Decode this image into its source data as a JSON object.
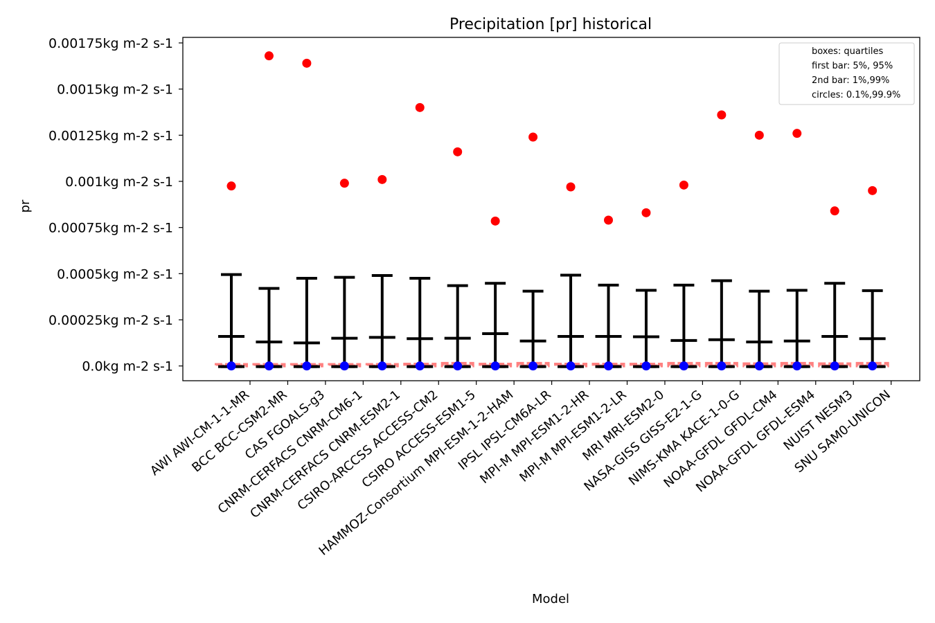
{
  "chart_data": {
    "type": "box",
    "title": "Precipitation [pr] historical",
    "xlabel": "Model",
    "ylabel": "pr",
    "ylim": [
      -8e-05,
      0.00178
    ],
    "yticks": [
      0.0,
      0.00025,
      0.0005,
      0.00075,
      0.001,
      0.00125,
      0.0015,
      0.00175
    ],
    "ytick_labels": [
      "0.0kg m-2 s-1",
      "0.00025kg m-2 s-1",
      "0.0005kg m-2 s-1",
      "0.00075kg m-2 s-1",
      "0.001kg m-2 s-1",
      "0.00125kg m-2 s-1",
      "0.0015kg m-2 s-1",
      "0.00175kg m-2 s-1"
    ],
    "legend": {
      "position": "top-right",
      "entries": [
        "boxes: quartiles",
        "first bar: 5%, 95%",
        "2nd bar: 1%,99%",
        "circles: 0.1%,99.9%"
      ]
    },
    "colors": {
      "whisker": "#000000",
      "box": "#ff8080",
      "high_circle": "#ff0000",
      "low_circle": "#0000ff"
    },
    "categories": [
      "AWI AWI-CM-1-1-MR",
      "BCC BCC-CSM2-MR",
      "CAS FGOALS-g3",
      "CNRM-CERFACS CNRM-CM6-1",
      "CNRM-CERFACS CNRM-ESM2-1",
      "CSIRO-ARCCSS ACCESS-CM2",
      "CSIRO ACCESS-ESM1-5",
      "HAMMOZ-Consortium MPI-ESM-1-2-HAM",
      "IPSL IPSL-CM6A-LR",
      "MPI-M MPI-ESM1-2-HR",
      "MPI-M MPI-ESM1-2-LR",
      "MRI MRI-ESM2-0",
      "NASA-GISS GISS-E2-1-G",
      "NIMS-KMA KACE-1-0-G",
      "NOAA-GFDL GFDL-CM4",
      "NOAA-GFDL GFDL-ESM4",
      "NUIST NESM3",
      "SNU SAM0-UNICON"
    ],
    "series": [
      {
        "name": "p0.1",
        "values": [
          0,
          0,
          0,
          0,
          0,
          0,
          0,
          0,
          0,
          0,
          0,
          0,
          0,
          0,
          0,
          0,
          0,
          0
        ]
      },
      {
        "name": "p1",
        "values": [
          0,
          0,
          0,
          0,
          0,
          0,
          0,
          0,
          0,
          0,
          0,
          0,
          0,
          0,
          0,
          0,
          0,
          0
        ]
      },
      {
        "name": "p5",
        "values": [
          0,
          0,
          0,
          0,
          0,
          0,
          0,
          0,
          0,
          0,
          0,
          0,
          0,
          0,
          0,
          0,
          0,
          0
        ]
      },
      {
        "name": "q1",
        "values": [
          0,
          0,
          0,
          0,
          0,
          0,
          0,
          0,
          0,
          0,
          0,
          0,
          0,
          0,
          0,
          0,
          0,
          0
        ]
      },
      {
        "name": "q3",
        "values": [
          8e-06,
          8e-06,
          8e-06,
          8e-06,
          8e-06,
          1e-05,
          1.4e-05,
          1e-05,
          1.4e-05,
          1e-05,
          1e-05,
          1e-05,
          1.4e-05,
          1.4e-05,
          1.2e-05,
          1.4e-05,
          1.2e-05,
          1.4e-05
        ]
      },
      {
        "name": "p95",
        "values": [
          0.00016,
          0.00013,
          0.000125,
          0.00015,
          0.000155,
          0.000148,
          0.00015,
          0.000175,
          0.000135,
          0.00016,
          0.00016,
          0.000158,
          0.000138,
          0.000142,
          0.00013,
          0.000135,
          0.00016,
          0.000148
        ]
      },
      {
        "name": "p99",
        "values": [
          0.000495,
          0.00042,
          0.000475,
          0.00048,
          0.00049,
          0.000475,
          0.000435,
          0.000448,
          0.000405,
          0.000492,
          0.000438,
          0.00041,
          0.000438,
          0.000462,
          0.000405,
          0.00041,
          0.000448,
          0.000408
        ]
      },
      {
        "name": "p99.9",
        "values": [
          0.000975,
          0.00168,
          0.00164,
          0.00099,
          0.00101,
          0.0014,
          0.00116,
          0.000785,
          0.00124,
          0.00097,
          0.00079,
          0.00083,
          0.00098,
          0.00136,
          0.00125,
          0.00126,
          0.00084,
          0.00095
        ]
      }
    ]
  }
}
